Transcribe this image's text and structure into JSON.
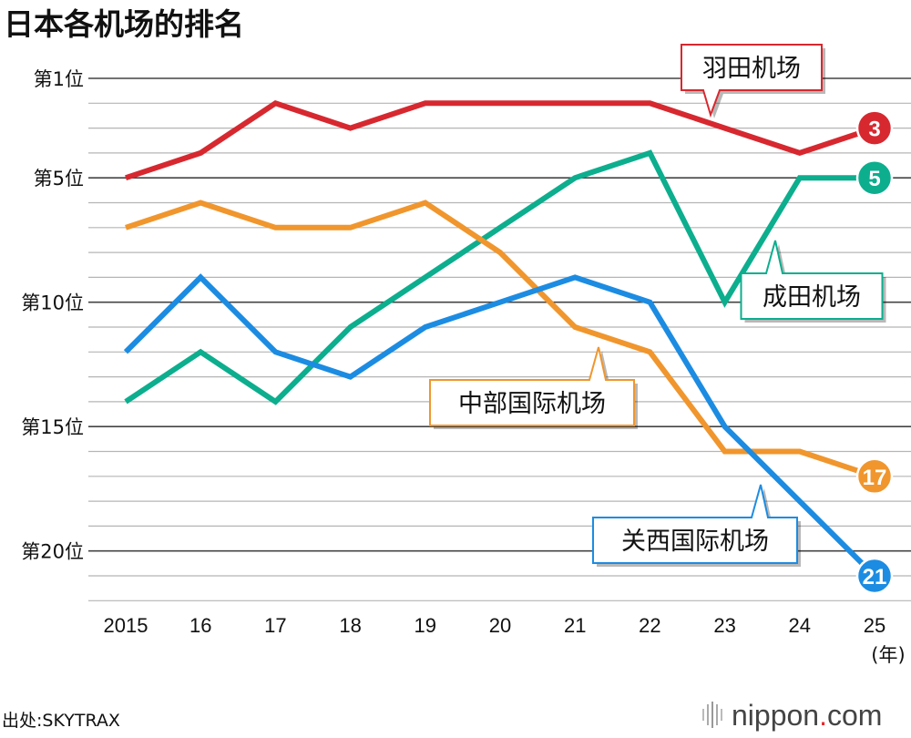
{
  "chart_data": {
    "type": "line",
    "title": "日本各机场的排名",
    "x": [
      "2015",
      "16",
      "17",
      "18",
      "19",
      "20",
      "21",
      "22",
      "23",
      "24",
      "25"
    ],
    "x_unit": "(年)",
    "ylabel": "",
    "yticks": [
      {
        "rank": 1,
        "label": "第1位"
      },
      {
        "rank": 5,
        "label": "第5位"
      },
      {
        "rank": 10,
        "label": "第10位"
      },
      {
        "rank": 15,
        "label": "第15位"
      },
      {
        "rank": 20,
        "label": "第20位"
      }
    ],
    "ylim": [
      1,
      22
    ],
    "y_inverted": true,
    "series": [
      {
        "name": "羽田机场",
        "color": "#d7282f",
        "values": [
          5,
          4,
          2,
          3,
          2,
          2,
          2,
          2,
          3,
          4,
          3
        ],
        "end_label": "3"
      },
      {
        "name": "成田机场",
        "color": "#0cae8e",
        "values": [
          14,
          12,
          14,
          11,
          9,
          7,
          5,
          4,
          10,
          5,
          5
        ],
        "end_label": "5"
      },
      {
        "name": "中部国际机场",
        "color": "#f0962d",
        "values": [
          7,
          6,
          7,
          7,
          6,
          8,
          11,
          12,
          16,
          16,
          17
        ],
        "end_label": "17"
      },
      {
        "name": "关西国际机场",
        "color": "#1c8ce2",
        "values": [
          12,
          9,
          12,
          13,
          11,
          10,
          9,
          10,
          15,
          18,
          21
        ],
        "end_label": "21"
      }
    ]
  },
  "source": "出处:SKYTRAX",
  "brand": {
    "name": "nippon",
    "dot": ".",
    "suffix": "com",
    "dot_color": "#e8262b"
  }
}
